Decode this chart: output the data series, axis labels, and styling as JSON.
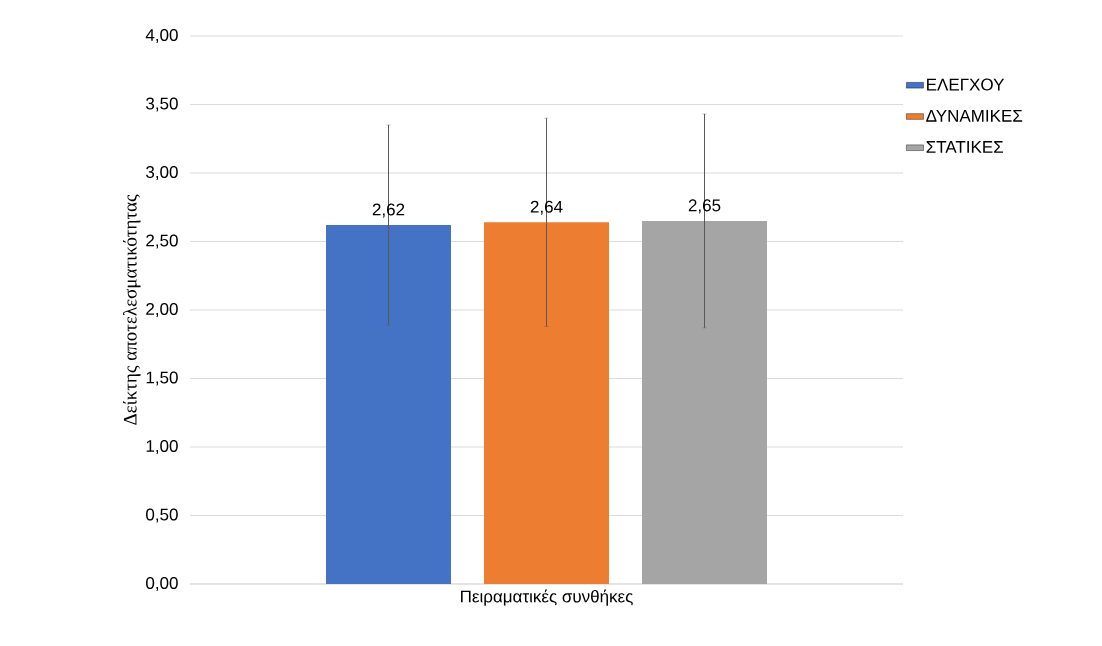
{
  "chart_data": {
    "type": "bar",
    "categories": [
      "Πειραματικές συνθήκες"
    ],
    "ylabel": "Δείκτης αποτελεσματικότητας",
    "series": [
      {
        "name": "ΕΛΕΓΧΟΥ",
        "color": "#4472c4",
        "values": [
          2.62
        ],
        "errors": [
          0.73
        ],
        "value_labels": [
          "2,62"
        ]
      },
      {
        "name": "ΔΥΝΑΜΙΚΕΣ",
        "color": "#ed7d31",
        "values": [
          2.64
        ],
        "errors": [
          0.76
        ],
        "value_labels": [
          "2,64"
        ]
      },
      {
        "name": "ΣΤΑΤΙΚΕΣ",
        "color": "#a5a5a5",
        "values": [
          2.65
        ],
        "errors": [
          0.78
        ],
        "value_labels": [
          "2,65"
        ]
      }
    ],
    "ylim": [
      0,
      4
    ],
    "yticks": [
      {
        "value": 0,
        "label": "0,00"
      },
      {
        "value": 0.5,
        "label": "0,50"
      },
      {
        "value": 1,
        "label": "1,00"
      },
      {
        "value": 1.5,
        "label": "1,50"
      },
      {
        "value": 2,
        "label": "2,00"
      },
      {
        "value": 2.5,
        "label": "2,50"
      },
      {
        "value": 3,
        "label": "3,00"
      },
      {
        "value": 3.5,
        "label": "3,50"
      },
      {
        "value": 4,
        "label": "4,00"
      }
    ],
    "grid": "y",
    "legend": "right"
  }
}
